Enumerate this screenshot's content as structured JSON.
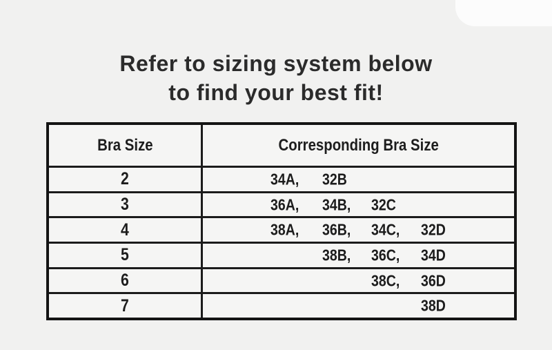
{
  "title": {
    "line1": "Refer to sizing system below",
    "line2": "to find your best fit!"
  },
  "table": {
    "headers": [
      "Bra Size",
      "Corresponding Bra Size"
    ],
    "rows": [
      {
        "size": "2",
        "slots": [
          "34A,",
          "32B",
          "",
          ""
        ]
      },
      {
        "size": "3",
        "slots": [
          "36A,",
          "34B,",
          "32C",
          ""
        ]
      },
      {
        "size": "4",
        "slots": [
          "38A,",
          "36B,",
          "34C,",
          "32D"
        ]
      },
      {
        "size": "5",
        "slots": [
          "",
          "38B,",
          "36C,",
          "34D"
        ]
      },
      {
        "size": "6",
        "slots": [
          "",
          "",
          "38C,",
          "36D"
        ]
      },
      {
        "size": "7",
        "slots": [
          "",
          "",
          "",
          "38D"
        ]
      }
    ]
  },
  "colors": {
    "page_background": "#f1f1f0",
    "table_background": "#f5f5f4",
    "border": "#141414",
    "text": "#1c1c1c",
    "title_text": "#2b2b2b"
  }
}
